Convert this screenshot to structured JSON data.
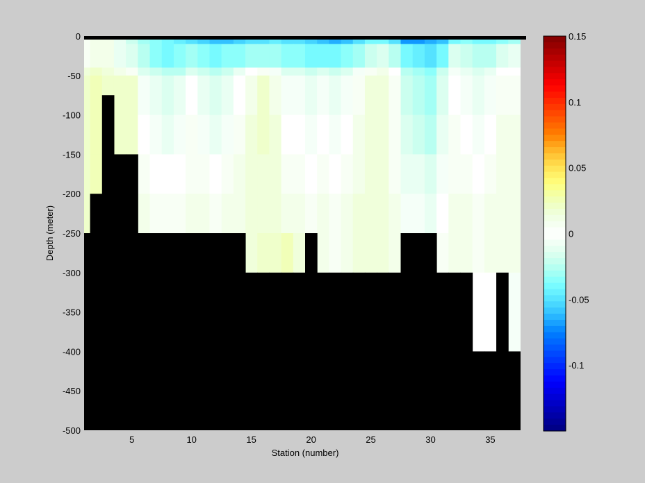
{
  "chart_data": {
    "type": "heatmap",
    "title": "",
    "xlabel": "Station (number)",
    "ylabel": "Depth (meter)",
    "xlim": [
      1,
      38
    ],
    "ylim": [
      -500,
      0
    ],
    "x_ticks": [
      5,
      10,
      15,
      20,
      25,
      30,
      35
    ],
    "y_ticks": [
      0,
      -50,
      -100,
      -150,
      -200,
      -250,
      -300,
      -350,
      -400,
      -450,
      -500
    ],
    "colorbar": {
      "colormap": "jet",
      "range": [
        -0.15,
        0.15
      ],
      "ticks": [
        0.15,
        0.1,
        0.05,
        0,
        -0.05,
        -0.1
      ],
      "tick_labels": [
        "0.15",
        "0.1",
        "0.05",
        "0",
        "-0.05",
        "-0.1"
      ]
    },
    "mask_color": "#000000",
    "stations": [
      1,
      2,
      3,
      4,
      5,
      6,
      7,
      8,
      9,
      10,
      11,
      12,
      13,
      14,
      15,
      16,
      17,
      18,
      19,
      20,
      21,
      22,
      23,
      24,
      25,
      26,
      27,
      28,
      29,
      30,
      31,
      32,
      33,
      34,
      35,
      36,
      37
    ],
    "depths": [
      -5,
      -25,
      -45,
      -75,
      -125,
      -175,
      -225,
      -275,
      -325,
      -375
    ],
    "values": [
      [
        0.005,
        0.01,
        0.01,
        -0.01,
        -0.02,
        -0.03,
        -0.035,
        -0.04,
        -0.045,
        -0.05,
        -0.055,
        -0.06,
        -0.06,
        -0.055,
        -0.05,
        -0.05,
        -0.045,
        -0.05,
        -0.05,
        -0.055,
        -0.06,
        -0.065,
        -0.06,
        -0.05,
        -0.04,
        -0.04,
        -0.05,
        -0.07,
        -0.07,
        -0.065,
        -0.06,
        -0.04,
        -0.035,
        -0.04,
        -0.04,
        -0.035,
        -0.03
      ],
      [
        0.005,
        0.01,
        0.01,
        -0.01,
        -0.015,
        -0.025,
        -0.035,
        -0.04,
        -0.035,
        -0.03,
        -0.035,
        -0.04,
        -0.035,
        -0.035,
        -0.03,
        -0.03,
        -0.03,
        -0.035,
        -0.035,
        -0.04,
        -0.04,
        -0.04,
        -0.035,
        -0.03,
        -0.02,
        -0.015,
        -0.025,
        -0.04,
        -0.045,
        -0.05,
        -0.04,
        -0.015,
        -0.02,
        -0.025,
        -0.025,
        -0.015,
        -0.01
      ],
      [
        0.015,
        0.02,
        0.015,
        0.01,
        0.005,
        -0.015,
        -0.02,
        -0.025,
        -0.025,
        -0.015,
        -0.02,
        -0.025,
        -0.02,
        -0.01,
        0.0,
        0.005,
        -0.005,
        -0.015,
        -0.015,
        -0.02,
        -0.015,
        -0.02,
        -0.015,
        -0.005,
        0.005,
        0.01,
        0.0,
        -0.025,
        -0.03,
        -0.035,
        -0.02,
        -0.005,
        -0.01,
        -0.015,
        -0.01,
        0.0,
        0.0
      ],
      [
        0.02,
        0.025,
        0.02,
        0.02,
        0.02,
        -0.005,
        -0.01,
        -0.015,
        -0.01,
        0.0,
        -0.01,
        -0.015,
        -0.01,
        0.0,
        0.01,
        0.02,
        0.01,
        -0.005,
        -0.005,
        -0.01,
        -0.005,
        -0.01,
        -0.005,
        0.005,
        0.015,
        0.015,
        0.005,
        -0.02,
        -0.025,
        -0.03,
        -0.015,
        0.0,
        -0.005,
        -0.01,
        -0.005,
        0.005,
        0.005
      ],
      [
        0.02,
        0.025,
        0.025,
        0.02,
        0.02,
        0.0,
        -0.005,
        -0.01,
        -0.005,
        0.005,
        -0.005,
        -0.01,
        -0.005,
        0.005,
        0.015,
        0.02,
        0.015,
        0.0,
        0.0,
        -0.005,
        0.0,
        -0.005,
        0.0,
        0.01,
        0.015,
        0.015,
        0.005,
        -0.015,
        -0.02,
        -0.025,
        -0.01,
        0.005,
        0.0,
        -0.005,
        0.0,
        0.01,
        0.01
      ],
      [
        0.02,
        0.025,
        0.025,
        0.02,
        0.02,
        0.005,
        0.0,
        0.0,
        0.0,
        0.005,
        0.005,
        0.0,
        0.005,
        0.01,
        0.015,
        0.015,
        0.015,
        0.005,
        0.005,
        0.0,
        0.005,
        0.0,
        0.005,
        0.01,
        0.015,
        0.015,
        0.005,
        -0.01,
        -0.01,
        -0.015,
        -0.005,
        0.005,
        0.005,
        0.0,
        0.005,
        0.01,
        0.01
      ],
      [
        0.02,
        0.025,
        0.025,
        0.02,
        0.02,
        0.01,
        0.005,
        0.005,
        0.005,
        0.01,
        0.01,
        0.005,
        0.01,
        0.01,
        0.015,
        0.015,
        0.015,
        0.01,
        0.01,
        0.005,
        0.01,
        0.005,
        0.01,
        0.015,
        0.015,
        0.015,
        0.01,
        -0.005,
        -0.005,
        -0.01,
        0.0,
        0.01,
        0.01,
        0.005,
        0.01,
        0.01,
        0.01
      ],
      [
        0.02,
        0.025,
        0.025,
        0.02,
        0.02,
        0.01,
        0.01,
        0.01,
        0.01,
        0.01,
        0.01,
        0.01,
        0.01,
        0.01,
        0.015,
        0.02,
        0.02,
        0.025,
        0.015,
        0.01,
        0.01,
        0.005,
        0.01,
        0.015,
        0.015,
        0.015,
        0.01,
        0.0,
        0.0,
        0.0,
        0.005,
        0.01,
        0.01,
        0.005,
        0.01,
        0.01,
        0.01
      ],
      [
        0.0,
        0.0,
        0.0,
        0.0,
        0.0,
        0.0,
        0.0,
        0.0,
        0.0,
        0.0,
        0.0,
        0.0,
        0.0,
        0.0,
        0.0,
        0.0,
        0.0,
        0.0,
        0.0,
        0.0,
        0.0,
        0.0,
        0.0,
        0.0,
        0.0,
        0.0,
        0.0,
        0.0,
        0.0,
        0.0,
        0.0,
        0.0,
        0.0,
        0.0,
        0.0,
        0.0,
        -0.005
      ],
      [
        0.0,
        0.0,
        0.0,
        0.0,
        0.0,
        0.0,
        0.0,
        0.0,
        0.0,
        0.0,
        0.0,
        0.0,
        0.0,
        0.0,
        0.0,
        0.0,
        0.0,
        0.0,
        0.0,
        0.0,
        0.0,
        0.0,
        0.0,
        0.0,
        0.0,
        0.0,
        0.0,
        0.0,
        0.0,
        0.0,
        0.0,
        0.0,
        0.0,
        0.0,
        0.0,
        0.0,
        -0.005
      ]
    ],
    "bottom_depth": [
      -250,
      -200,
      -75,
      -150,
      -150,
      -250,
      -250,
      -250,
      -250,
      -250,
      -250,
      -250,
      -250,
      -250,
      -300,
      -300,
      -300,
      -300,
      -300,
      -250,
      -300,
      -300,
      -300,
      -300,
      -300,
      -300,
      -300,
      -250,
      -250,
      -250,
      -300,
      -300,
      -300,
      -400,
      -400,
      -300,
      -400
    ]
  }
}
